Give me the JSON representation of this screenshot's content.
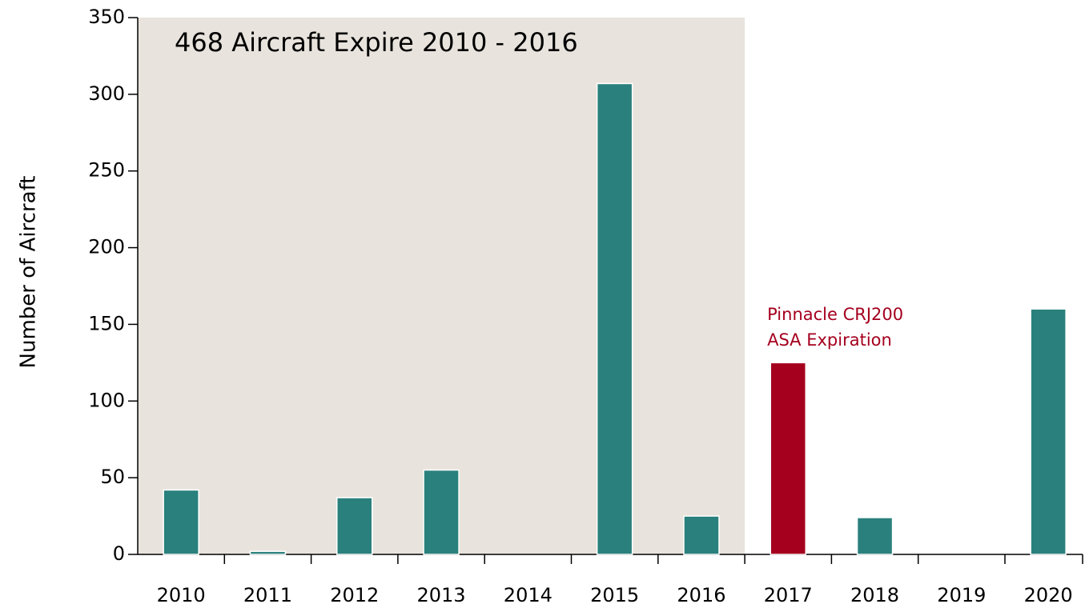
{
  "chart_data": {
    "type": "bar",
    "y_axis_label": "Number of Aircraft",
    "categories": [
      "2010",
      "2011",
      "2012",
      "2013",
      "2014",
      "2015",
      "2016",
      "2017",
      "2018",
      "2019",
      "2020"
    ],
    "values": [
      42,
      2,
      37,
      55,
      0,
      307,
      25,
      125,
      24,
      0,
      160
    ],
    "colors": [
      "#2a807c",
      "#2a807c",
      "#2a807c",
      "#2a807c",
      "#2a807c",
      "#2a807c",
      "#2a807c",
      "#a5001e",
      "#2a807c",
      "#2a807c",
      "#2a807c"
    ],
    "ylim": [
      0,
      350
    ],
    "yticks": [
      0,
      50,
      100,
      150,
      200,
      250,
      300,
      350
    ],
    "highlight_range": [
      "2010",
      "2016"
    ],
    "highlight_color": "#e8e3dc",
    "highlight_annotation": "468 Aircraft Expire 2010 - 2016",
    "bar_annotation": {
      "category": "2017",
      "lines": [
        "Pinnacle CRJ200",
        "ASA Expiration"
      ],
      "color": "#a5001e"
    }
  }
}
